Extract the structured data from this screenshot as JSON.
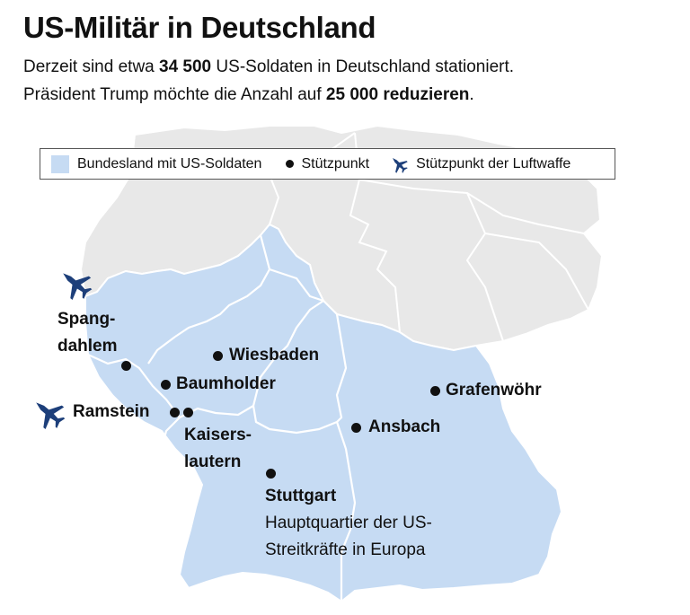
{
  "title": "US-Militär in Deutschland",
  "subtitle": {
    "line1_prefix": "Derzeit sind etwa ",
    "line1_number": "34 500",
    "line1_suffix": " US-Soldaten in Deutschland stationiert.",
    "line2_prefix": "Präsident Trump möchte die Anzahl auf ",
    "line2_bold": "25 000 reduzieren",
    "line2_suffix": "."
  },
  "legend": {
    "state_label": "Bundesland mit US-Soldaten",
    "base_label": "Stützpunkt",
    "airbase_label": "Stützpunkt der Luftwaffe"
  },
  "colors": {
    "state_fill": "#c6dbf3",
    "neighbor_fill": "#e8e8e8",
    "border": "#ffffff",
    "marker": "#111111",
    "jet": "#1d3f7a"
  },
  "places": {
    "spangdahlem_line1": "Spang-",
    "spangdahlem_line2": "dahlem",
    "wiesbaden": "Wiesbaden",
    "baumholder": "Baumholder",
    "ramstein": "Ramstein",
    "kaiserslautern_line1": "Kaisers-",
    "kaiserslautern_line2": "lautern",
    "grafenwoehr": "Grafenwöhr",
    "ansbach": "Ansbach",
    "stuttgart": "Stuttgart",
    "stuttgart_note_line1": "Hauptquartier der US-",
    "stuttgart_note_line2": "Streitkräfte in Europa"
  },
  "icons": {
    "legend_jet": "fighter-jet-icon",
    "map_jets": [
      "fighter-jet-icon",
      "fighter-jet-icon"
    ]
  }
}
